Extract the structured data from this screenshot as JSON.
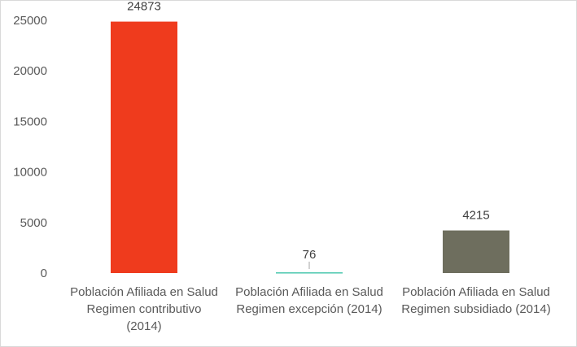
{
  "chart_data": {
    "type": "bar",
    "categories": [
      [
        "Población Afiliada en Salud",
        "Regimen contributivo",
        "(2014)"
      ],
      [
        "Población Afiliada en Salud",
        "Regimen excepción (2014)"
      ],
      [
        "Población Afiliada en Salud",
        "Regimen subsidiado (2014)"
      ]
    ],
    "values": [
      24873,
      76,
      4215
    ],
    "data_labels": [
      "24873",
      "76",
      "4215"
    ],
    "colors": [
      "#ef3b1d",
      "#4fc9b0",
      "#6e6e5e"
    ],
    "ylim": [
      0,
      25000
    ],
    "yticks": [
      "0",
      "5000",
      "10000",
      "15000",
      "20000",
      "25000"
    ],
    "title": "",
    "xlabel": "",
    "ylabel": "",
    "grid": false,
    "legend": "none"
  }
}
